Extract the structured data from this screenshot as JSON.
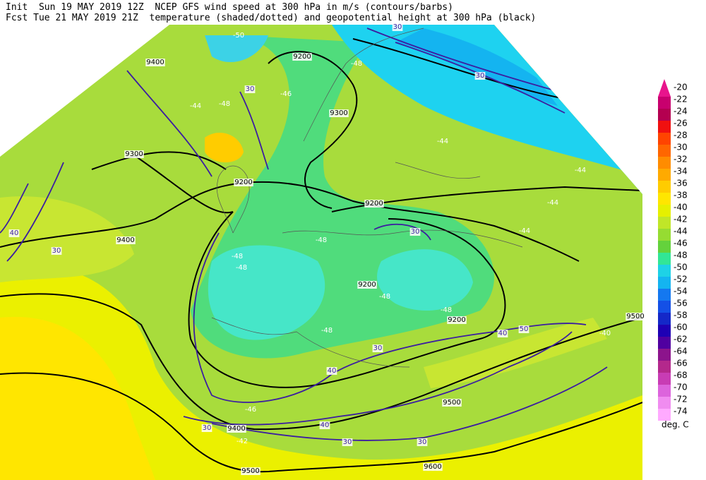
{
  "header": {
    "line1": "Init  Sun 19 MAY 2019 12Z  NCEP GFS wind speed at 300 hPa in m/s (contours/barbs)",
    "line2": "Fcst Tue 21 MAY 2019 21Z  temperature (shaded/dotted) and geopotential height at 300 hPa (black)"
  },
  "colorbar": {
    "labels": [
      -20,
      -22,
      -24,
      -26,
      -28,
      -30,
      -32,
      -34,
      -36,
      -38,
      -40,
      -42,
      -44,
      -46,
      -48,
      -50,
      -52,
      -54,
      -56,
      -58,
      -60,
      -62,
      -64,
      -66,
      -68,
      -70,
      -72,
      -74
    ],
    "colors": [
      "#e8148c",
      "#c8006e",
      "#b40050",
      "#f01010",
      "#ff4400",
      "#ff6600",
      "#ff8c00",
      "#ffaa00",
      "#ffcc00",
      "#ffe600",
      "#e6f000",
      "#c0e628",
      "#96dc32",
      "#64d23c",
      "#32e696",
      "#1ed2e6",
      "#14b4f0",
      "#1478f0",
      "#1450e6",
      "#1428c8",
      "#1e00b4",
      "#5000a0",
      "#8c148c",
      "#b4288c",
      "#c83cb4",
      "#dc64dc",
      "#f08cf0",
      "#ffaaff"
    ],
    "unit": "deg. C"
  },
  "map": {
    "height_labels": [
      9400,
      9200,
      9300,
      9300,
      9200,
      9400,
      9200,
      9200,
      9200,
      9500,
      9500,
      9400,
      9500,
      9600
    ],
    "wind_labels": [
      30,
      30,
      30,
      30,
      30,
      30,
      40,
      40,
      50,
      40,
      30,
      30,
      30,
      40
    ],
    "temperature_labels": [
      -50,
      -48,
      -46,
      -44,
      -48,
      -44,
      -44,
      -44,
      -44,
      -48,
      -48,
      -48,
      -48,
      -48,
      -48,
      -40,
      -42,
      -46
    ]
  }
}
